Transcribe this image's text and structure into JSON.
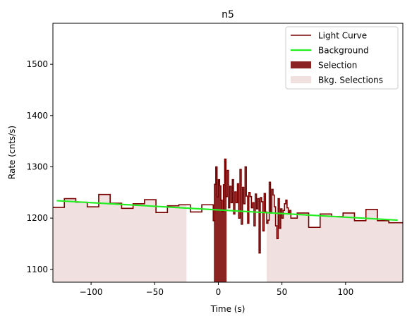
{
  "chart_data": {
    "type": "line",
    "title": "n5",
    "xlabel": "Time (s)",
    "ylabel": "Rate (cnts/s)",
    "xlim": [
      -130,
      145
    ],
    "ylim": [
      1075,
      1580
    ],
    "xticks": [
      -100,
      -50,
      0,
      50,
      100
    ],
    "yticks": [
      1100,
      1200,
      1300,
      1400,
      1500
    ],
    "grid": false,
    "legend_position": "top-right",
    "colors": {
      "light_curve": "#7a0000",
      "background": "#22ee22",
      "selection": "#8b2323",
      "bkg_selection": "#f0e0e0"
    },
    "legend": [
      {
        "label": "Light Curve",
        "kind": "line",
        "color": "#7a0000"
      },
      {
        "label": "Background",
        "kind": "line",
        "color": "#22ee22"
      },
      {
        "label": "Selection",
        "kind": "patch",
        "color": "#8b2323"
      },
      {
        "label": "Bkg. Selections",
        "kind": "patch",
        "color": "#f0e0e0"
      }
    ],
    "bkg_selections": [
      [
        -130,
        -25
      ],
      [
        38,
        145
      ]
    ],
    "selection": [
      -3.5,
      6.5
    ],
    "background_line": {
      "x": [
        -127,
        141
      ],
      "y": [
        1234,
        1196
      ]
    },
    "light_curve": {
      "edges": [
        -130,
        -121,
        -112,
        -103,
        -94,
        -85,
        -76,
        -67,
        -58,
        -49,
        -40,
        -31,
        -22,
        -13,
        -4,
        -3,
        -2,
        -1,
        0,
        1,
        2,
        3,
        4,
        5,
        6,
        7,
        8,
        9,
        10,
        11,
        12,
        13,
        14,
        15,
        16,
        17,
        18,
        19,
        20,
        21,
        22,
        23,
        24,
        25,
        26,
        27,
        28,
        29,
        30,
        31,
        32,
        33,
        34,
        35,
        36,
        37,
        38,
        39,
        40,
        41,
        42,
        43,
        44,
        45,
        46,
        47,
        48,
        49,
        50,
        51,
        52,
        53,
        54,
        55,
        56,
        57,
        62,
        71,
        80,
        89,
        98,
        107,
        116,
        125,
        134,
        145
      ],
      "values": [
        1221,
        1238,
        1231,
        1222,
        1246,
        1229,
        1219,
        1228,
        1236,
        1211,
        1224,
        1226,
        1212,
        1226,
        1195,
        1266,
        1300,
        1241,
        1275,
        1263,
        1235,
        1213,
        1265,
        1315,
        1242,
        1293,
        1220,
        1262,
        1230,
        1275,
        1208,
        1251,
        1230,
        1267,
        1200,
        1295,
        1188,
        1260,
        1228,
        1300,
        1243,
        1190,
        1250,
        1242,
        1220,
        1230,
        1185,
        1247,
        1218,
        1238,
        1132,
        1240,
        1232,
        1175,
        1248,
        1212,
        1190,
        1196,
        1270,
        1210,
        1256,
        1245,
        1222,
        1185,
        1160,
        1238,
        1180,
        1218,
        1200,
        1215,
        1228,
        1235,
        1220,
        1210,
        1215,
        1200,
        1210,
        1182,
        1208,
        1203,
        1210,
        1195,
        1217,
        1195,
        1191
      ]
    }
  }
}
